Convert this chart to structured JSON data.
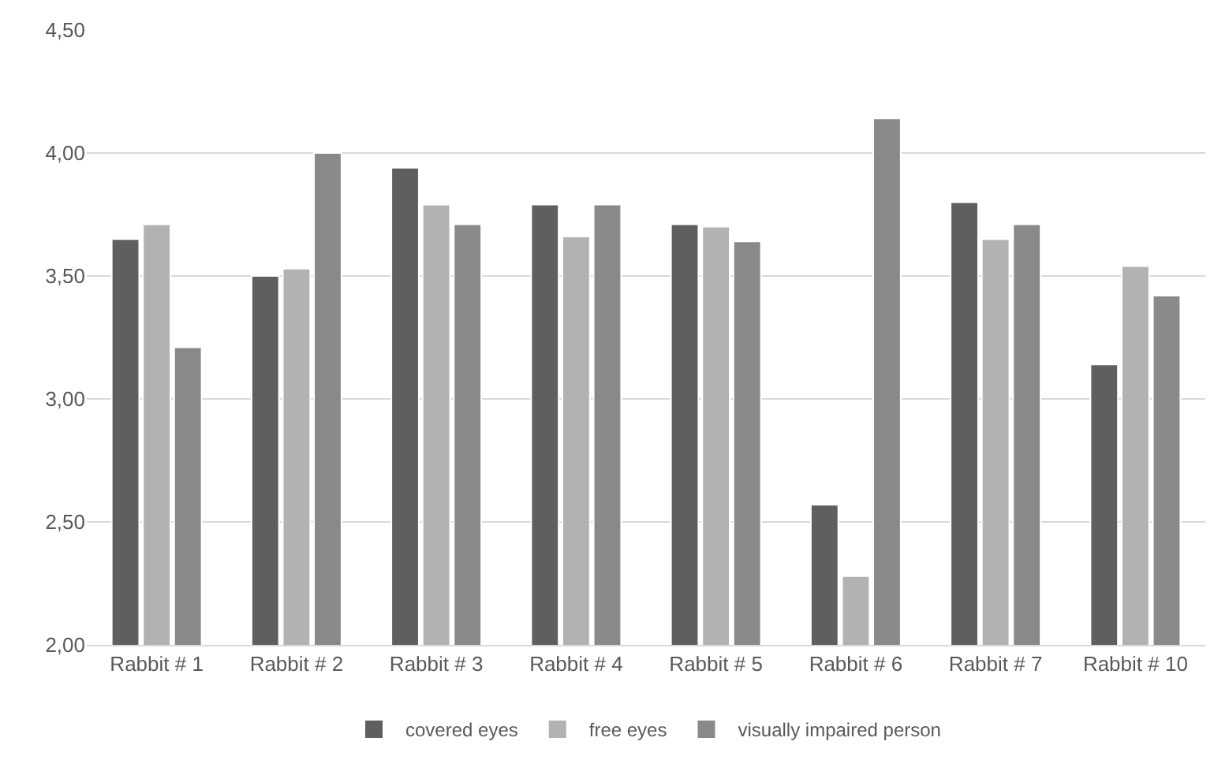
{
  "chart_data": {
    "type": "bar",
    "categories": [
      "Rabbit # 1",
      "Rabbit # 2",
      "Rabbit # 3",
      "Rabbit # 4",
      "Rabbit # 5",
      "Rabbit # 6",
      "Rabbit # 7",
      "Rabbit # 10"
    ],
    "series": [
      {
        "name": "covered eyes",
        "color": "#5f5f5f",
        "values": [
          3.65,
          3.5,
          3.94,
          3.79,
          3.71,
          2.57,
          3.8,
          3.14
        ]
      },
      {
        "name": "free eyes",
        "color": "#b2b2b2",
        "values": [
          3.71,
          3.53,
          3.79,
          3.66,
          3.7,
          2.28,
          3.65,
          3.54
        ]
      },
      {
        "name": "visually impaired person",
        "color": "#898989",
        "values": [
          3.21,
          4.0,
          3.71,
          3.79,
          3.64,
          4.14,
          3.71,
          3.42
        ]
      }
    ],
    "ylim": [
      2,
      4.5
    ],
    "yticks": [
      {
        "value": 2,
        "label": "2,00"
      },
      {
        "value": 2.5,
        "label": "2,50"
      },
      {
        "value": 3,
        "label": "3,00"
      },
      {
        "value": 3.5,
        "label": "3,50"
      },
      {
        "value": 4,
        "label": "4,00"
      },
      {
        "value": 4.5,
        "label": "4,50"
      }
    ],
    "grid": "y",
    "legend": "bottom"
  }
}
